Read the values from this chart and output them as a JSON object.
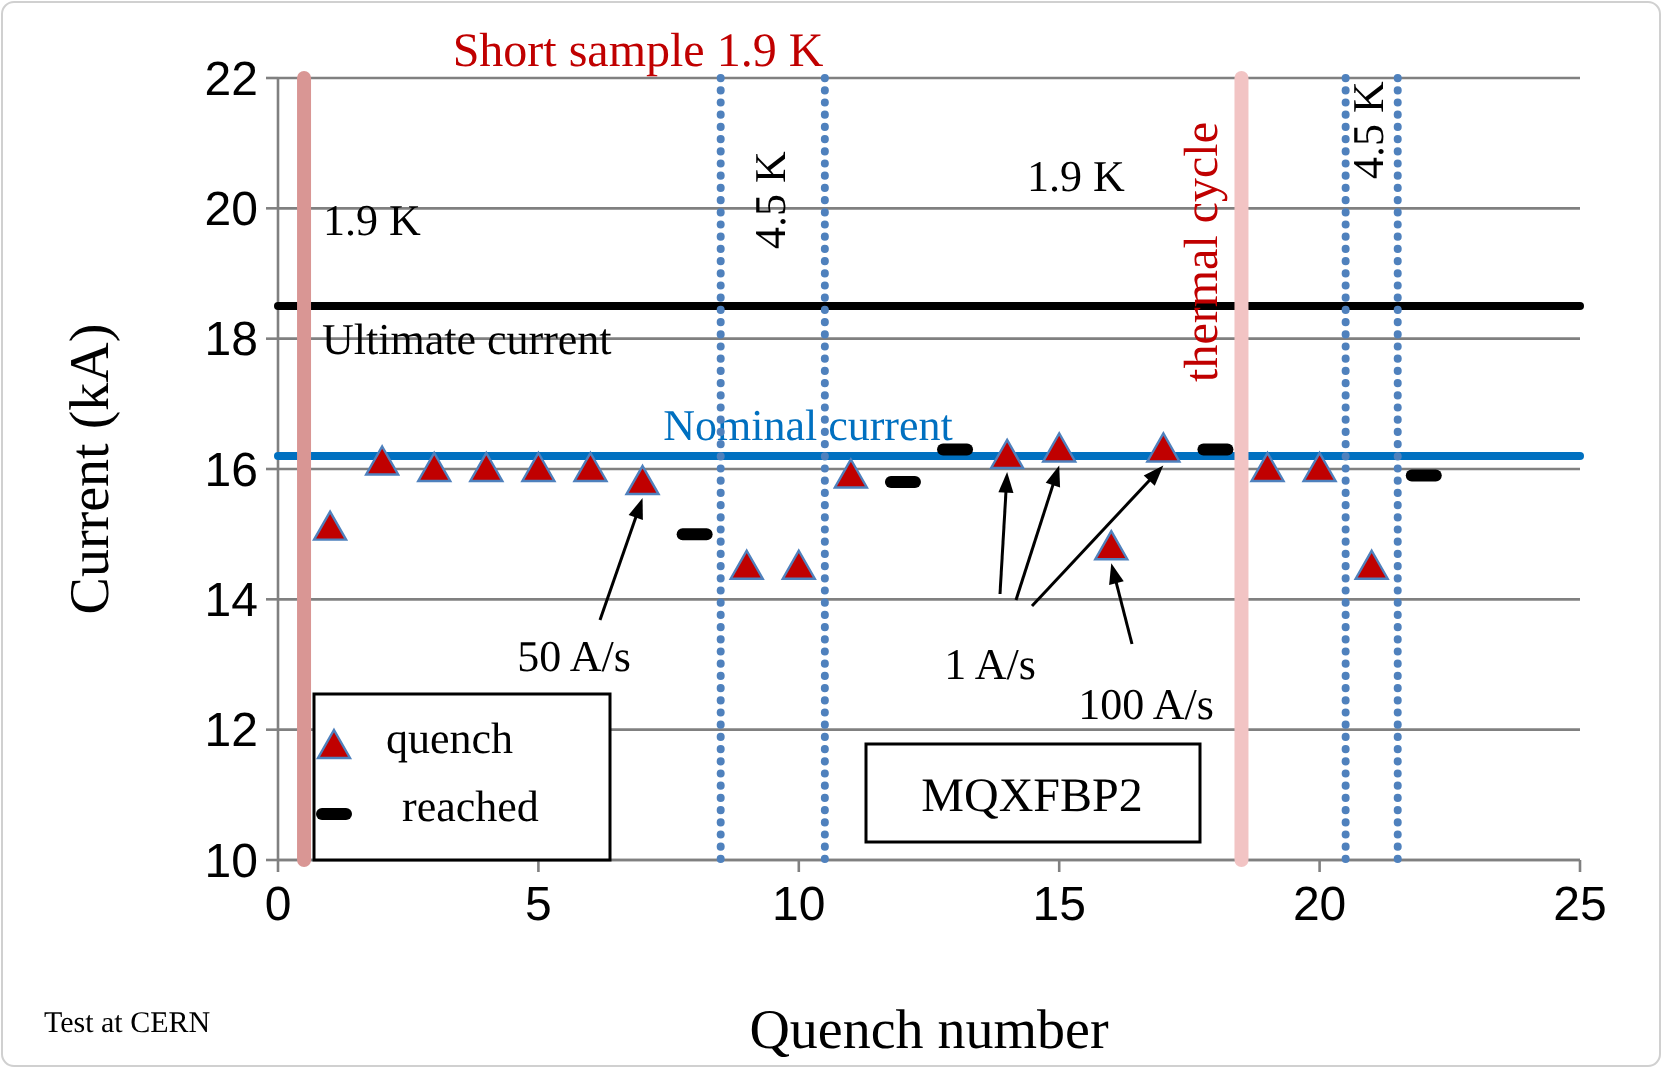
{
  "chart_data": {
    "type": "scatter",
    "title": "Short sample 1.9 K",
    "xlabel": "Quench number",
    "ylabel": "Current (kA)",
    "xlim": [
      0,
      25
    ],
    "xticks": [
      0,
      5,
      10,
      15,
      20,
      25
    ],
    "ylim": [
      10,
      22
    ],
    "yticks": [
      10,
      12,
      14,
      16,
      18,
      20,
      22
    ],
    "grid": "y",
    "legend": "bottom left",
    "series": [
      {
        "name": "quench",
        "color": "#c00000",
        "marker": "triangle",
        "x": [
          1,
          2,
          3,
          4,
          5,
          6,
          7,
          9,
          10,
          11,
          14,
          15,
          16,
          17,
          19,
          20,
          21
        ],
        "values": [
          15.1,
          16.1,
          16.0,
          16.0,
          16.0,
          16.0,
          15.8,
          14.5,
          14.5,
          15.9,
          16.2,
          16.3,
          14.8,
          16.3,
          16.0,
          16.0,
          14.5
        ]
      },
      {
        "name": "reached",
        "color": "#000000",
        "x": [
          8,
          12,
          13,
          18,
          22
        ],
        "values": [
          15.0,
          15.8,
          16.3,
          16.3,
          15.9
        ]
      }
    ],
    "ref_lines": [
      {
        "axis": "y",
        "value": 18.5,
        "label": "Ultimate current",
        "color": "#000000"
      },
      {
        "axis": "y",
        "value": 16.2,
        "label": "Nominal current",
        "color": "#0070c0"
      },
      {
        "axis": "x",
        "value": 0.5,
        "color": "#d99694"
      },
      {
        "axis": "x",
        "value": 18.5,
        "label": "thermal cycle",
        "color": "#f2c4c4"
      },
      {
        "axis": "x",
        "value": 8.5,
        "color": "#4f81bd",
        "line_style": "dotted"
      },
      {
        "axis": "x",
        "value": 10.5,
        "color": "#4f81bd",
        "line_style": "dotted"
      },
      {
        "axis": "x",
        "value": 20.5,
        "color": "#4f81bd",
        "line_style": "dotted"
      },
      {
        "axis": "x",
        "value": 21.5,
        "color": "#4f81bd",
        "line_style": "dotted"
      }
    ],
    "annotations": [
      "1.9 K",
      "4.5 K",
      "1.9 K",
      "4.5 K",
      "50 A/s",
      "1 A/s",
      "100 A/s",
      "MQXFBP2",
      "Test at CERN"
    ]
  }
}
